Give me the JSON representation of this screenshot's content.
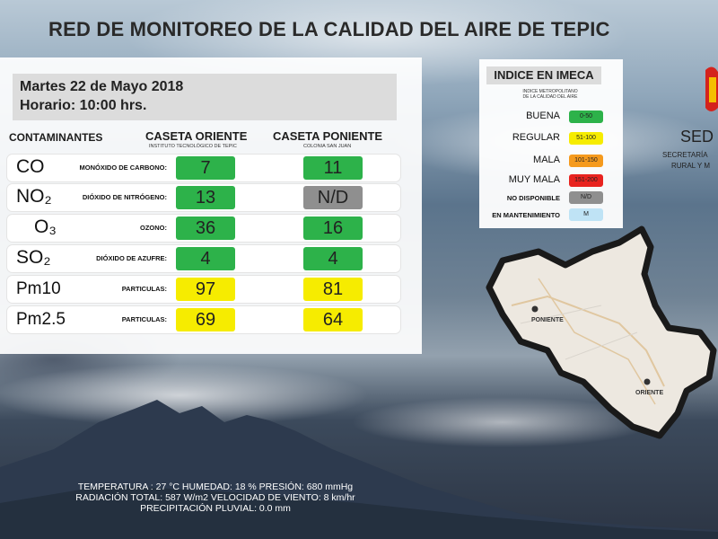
{
  "title": "RED DE MONITOREO DE LA CALIDAD DEL AIRE DE TEPIC",
  "date": "Martes 22 de Mayo 2018",
  "time": "Horario: 10:00 hrs.",
  "headers": {
    "contaminants": "CONTAMINANTES",
    "east": "CASETA ORIENTE",
    "east_sub": "INSTITUTO TECNOLÓGICO DE TEPIC",
    "west": "CASETA  PONIENTE",
    "west_sub": "COLONIA SAN JUAN"
  },
  "rows": [
    {
      "symbol": "CO",
      "name": "MONÓXIDO DE CARBONO:",
      "east": "7",
      "east_color": "#2db24a",
      "west": "11",
      "west_color": "#2db24a"
    },
    {
      "symbol": "NO₂",
      "name": "DIÓXIDO DE NITRÓGENO:",
      "east": "13",
      "east_color": "#2db24a",
      "west": "N/D",
      "west_color": "#8f8f8f"
    },
    {
      "symbol": "O₃",
      "name": "OZONO:",
      "east": "36",
      "east_color": "#2db24a",
      "west": "16",
      "west_color": "#2db24a"
    },
    {
      "symbol": "SO₂",
      "name": "DIÓXIDO DE AZUFRE:",
      "east": "4",
      "east_color": "#2db24a",
      "west": "4",
      "west_color": "#2db24a"
    },
    {
      "symbol": "Pm10",
      "name": "PARTICULAS:",
      "east": "97",
      "east_color": "#f6ec00",
      "west": "81",
      "west_color": "#f6ec00"
    },
    {
      "symbol": "Pm2.5",
      "name": "PARTICULAS:",
      "east": "69",
      "east_color": "#f6ec00",
      "west": "64",
      "west_color": "#f6ec00"
    }
  ],
  "imeca": {
    "title": "INDICE EN IMECA",
    "sub1": "INDICE METROPOLITANO",
    "sub2": "DE LA CALIDAD DEL AIRE",
    "levels": [
      {
        "label": "BUENA",
        "range": "0-50",
        "color": "#2db24a"
      },
      {
        "label": "REGULAR",
        "range": "51-100",
        "color": "#f6ec00"
      },
      {
        "label": "MALA",
        "range": "101-150",
        "color": "#f59a1d"
      },
      {
        "label": "MUY MALA",
        "range": "151-200",
        "color": "#e8231f"
      },
      {
        "label": "NO DISPONIBLE",
        "range": "N/D",
        "color": "#8f8f8f"
      },
      {
        "label": "EN MANTENIMIENTO",
        "range": "M",
        "color": "#bfe3f5"
      }
    ]
  },
  "agency": {
    "name": "SED",
    "line1": "SECRETARÍA",
    "line2": "RURAL Y M"
  },
  "map": {
    "west_label": "PONIENTE",
    "east_label": "ORIENTE"
  },
  "weather": {
    "line1": "TEMPERATURA :  27 °C  HUMEDAD: 18 %  PRESIÓN:  680 mmHg",
    "line2": "RADIACIÓN TOTAL: 587 W/m2  VELOCIDAD DE VIENTO: 8 km/hr",
    "line3": "PRECIPITACIÓN PLUVIAL: 0.0 mm"
  }
}
